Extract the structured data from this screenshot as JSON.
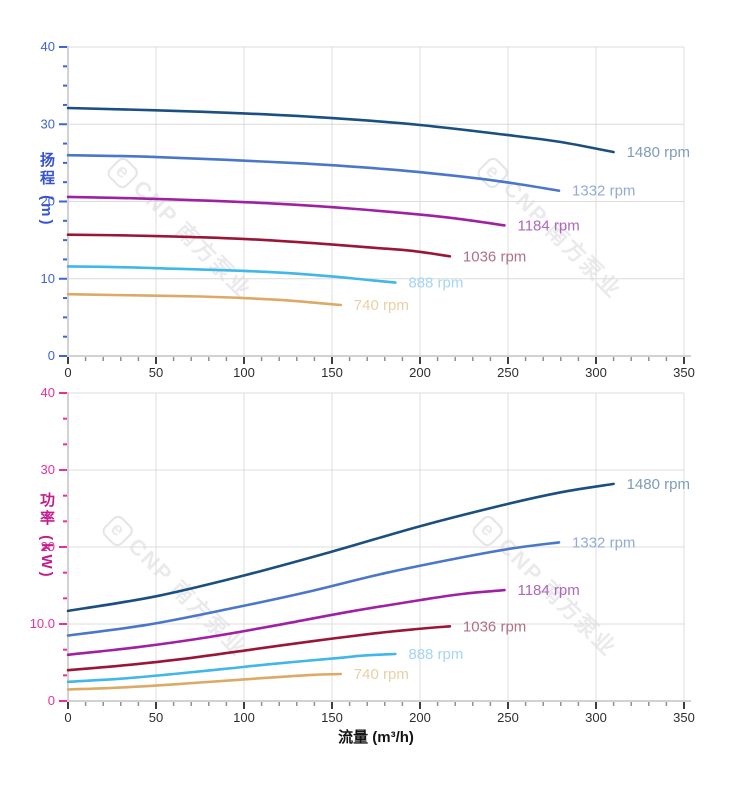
{
  "watermark": {
    "logo": "e",
    "text": "CNP 南方泵业"
  },
  "x_axis_title": "流量 (m³/h)",
  "chart_data": [
    {
      "type": "line",
      "title": "",
      "ylabel": "扬程 (m)",
      "xlabel": "流量 (m³/h)",
      "xlim": [
        0,
        350
      ],
      "ylim": [
        0,
        40
      ],
      "grid": true,
      "legend_position": "end-of-curve",
      "x_tick_labels": [
        "0",
        "50",
        "100",
        "150",
        "200",
        "250",
        "300",
        "350"
      ],
      "y_tick_labels": [
        "40",
        "30",
        "20",
        "10",
        "0"
      ],
      "x_minor_divisions": 5,
      "y_minor_divisions": 4,
      "axis_accent": "#3f63d8",
      "axis_title_color": "#3653d4",
      "series": [
        {
          "name": "1480 rpm",
          "color": "#1b4f80",
          "label_color": "#7e9cbc",
          "points": [
            [
              0,
              32.1
            ],
            [
              50,
              31.8
            ],
            [
              100,
              31.4
            ],
            [
              150,
              30.8
            ],
            [
              200,
              29.9
            ],
            [
              250,
              28.6
            ],
            [
              280,
              27.7
            ],
            [
              310,
              26.4
            ]
          ]
        },
        {
          "name": "1332 rpm",
          "color": "#4a77c9",
          "label_color": "#93abd6",
          "points": [
            [
              0,
              26.0
            ],
            [
              45,
              25.8
            ],
            [
              90,
              25.4
            ],
            [
              135,
              24.9
            ],
            [
              180,
              24.2
            ],
            [
              225,
              23.2
            ],
            [
              252,
              22.4
            ],
            [
              279,
              21.4
            ]
          ]
        },
        {
          "name": "1184 rpm",
          "color": "#a020a4",
          "label_color": "#ad68bb",
          "points": [
            [
              0,
              20.6
            ],
            [
              40,
              20.4
            ],
            [
              80,
              20.1
            ],
            [
              120,
              19.7
            ],
            [
              160,
              19.1
            ],
            [
              200,
              18.3
            ],
            [
              224,
              17.7
            ],
            [
              248,
              16.9
            ]
          ]
        },
        {
          "name": "1036 rpm",
          "color": "#9a1638",
          "label_color": "#b07086",
          "points": [
            [
              0,
              15.7
            ],
            [
              35,
              15.6
            ],
            [
              70,
              15.4
            ],
            [
              105,
              15.1
            ],
            [
              140,
              14.6
            ],
            [
              175,
              14.0
            ],
            [
              196,
              13.6
            ],
            [
              217,
              12.9
            ]
          ]
        },
        {
          "name": "888 rpm",
          "color": "#41b6e8",
          "label_color": "#a5d5f2",
          "points": [
            [
              0,
              11.6
            ],
            [
              30,
              11.5
            ],
            [
              60,
              11.3
            ],
            [
              90,
              11.1
            ],
            [
              120,
              10.8
            ],
            [
              150,
              10.3
            ],
            [
              168,
              9.9
            ],
            [
              186,
              9.5
            ]
          ]
        },
        {
          "name": "740 rpm",
          "color": "#dcaa66",
          "label_color": "#e8d0a5",
          "points": [
            [
              0,
              8.0
            ],
            [
              25,
              7.9
            ],
            [
              50,
              7.8
            ],
            [
              75,
              7.7
            ],
            [
              100,
              7.5
            ],
            [
              125,
              7.2
            ],
            [
              140,
              6.9
            ],
            [
              155,
              6.6
            ]
          ]
        }
      ]
    },
    {
      "type": "line",
      "title": "",
      "ylabel": "功率 (kW)",
      "xlabel": "流量 (m³/h)",
      "xlim": [
        0,
        350
      ],
      "ylim": [
        0,
        40
      ],
      "grid": true,
      "legend_position": "end-of-curve",
      "x_tick_labels": [
        "0",
        "50",
        "100",
        "150",
        "200",
        "250",
        "300",
        "350"
      ],
      "y_tick_labels": [
        "40",
        "30",
        "20",
        "10.0",
        "0"
      ],
      "x_minor_divisions": 5,
      "y_minor_divisions": 3,
      "axis_accent": "#ea2f9b",
      "axis_title_color": "#c21d8e",
      "series": [
        {
          "name": "1480 rpm",
          "color": "#1b4f80",
          "label_color": "#7e9cbc",
          "points": [
            [
              0,
              11.7
            ],
            [
              50,
              13.6
            ],
            [
              100,
              16.3
            ],
            [
              150,
              19.4
            ],
            [
              200,
              22.7
            ],
            [
              250,
              25.6
            ],
            [
              280,
              27.1
            ],
            [
              310,
              28.2
            ]
          ]
        },
        {
          "name": "1332 rpm",
          "color": "#4a77c9",
          "label_color": "#93abd6",
          "points": [
            [
              0,
              8.5
            ],
            [
              45,
              9.9
            ],
            [
              90,
              11.9
            ],
            [
              135,
              14.1
            ],
            [
              180,
              16.6
            ],
            [
              225,
              18.7
            ],
            [
              252,
              19.8
            ],
            [
              279,
              20.6
            ]
          ]
        },
        {
          "name": "1184 rpm",
          "color": "#a020a4",
          "label_color": "#ad68bb",
          "points": [
            [
              0,
              6.0
            ],
            [
              40,
              7.0
            ],
            [
              80,
              8.3
            ],
            [
              120,
              9.9
            ],
            [
              160,
              11.6
            ],
            [
              200,
              13.1
            ],
            [
              224,
              13.9
            ],
            [
              248,
              14.4
            ]
          ]
        },
        {
          "name": "1036 rpm",
          "color": "#9a1638",
          "label_color": "#b07086",
          "points": [
            [
              0,
              4.0
            ],
            [
              35,
              4.7
            ],
            [
              70,
              5.6
            ],
            [
              105,
              6.7
            ],
            [
              140,
              7.8
            ],
            [
              175,
              8.8
            ],
            [
              196,
              9.3
            ],
            [
              217,
              9.7
            ]
          ]
        },
        {
          "name": "888 rpm",
          "color": "#41b6e8",
          "label_color": "#a5d5f2",
          "points": [
            [
              0,
              2.5
            ],
            [
              30,
              2.9
            ],
            [
              60,
              3.5
            ],
            [
              90,
              4.2
            ],
            [
              120,
              4.9
            ],
            [
              150,
              5.5
            ],
            [
              168,
              5.9
            ],
            [
              186,
              6.1
            ]
          ]
        },
        {
          "name": "740 rpm",
          "color": "#dcaa66",
          "label_color": "#e8d0a5",
          "points": [
            [
              0,
              1.5
            ],
            [
              25,
              1.7
            ],
            [
              50,
              2.0
            ],
            [
              75,
              2.4
            ],
            [
              100,
              2.8
            ],
            [
              125,
              3.2
            ],
            [
              140,
              3.4
            ],
            [
              155,
              3.5
            ]
          ]
        }
      ]
    }
  ]
}
